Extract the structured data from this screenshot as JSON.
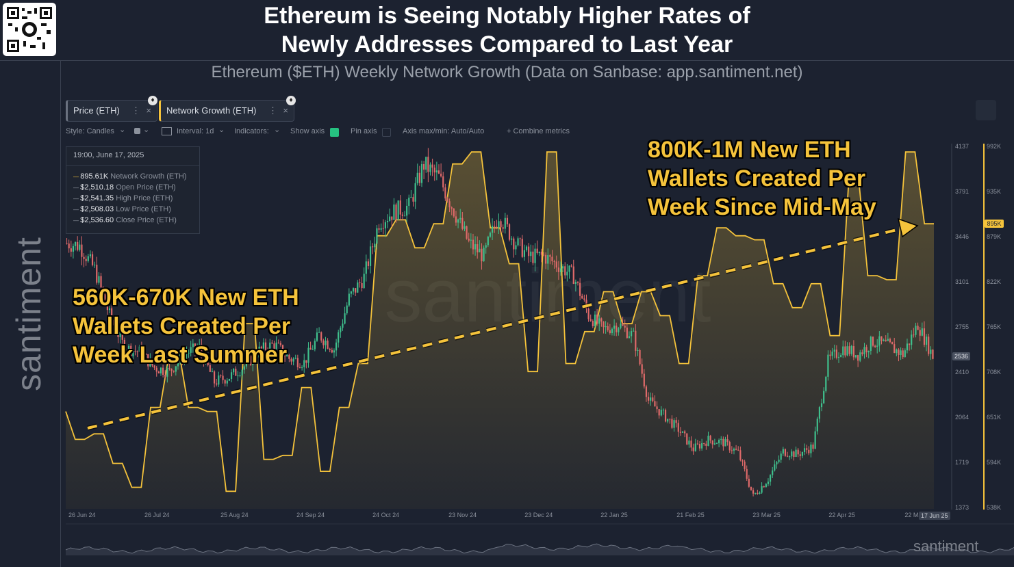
{
  "header": {
    "title_line1": "Ethereum is Seeing Notably Higher Rates of",
    "title_line2": "Newly Addresses Compared to Last Year",
    "subtitle": "Ethereum ($ETH) Weekly Network Growth (Data on Sanbase: app.santiment.net)"
  },
  "brand": {
    "name": "santiment",
    "watermark": "santiment"
  },
  "tabs": [
    {
      "label": "Price (ETH)",
      "close": "×",
      "menu": "⋮"
    },
    {
      "label": "Network Growth (ETH)",
      "close": "×",
      "menu": "⋮"
    }
  ],
  "toolbar": {
    "style": "Style: Candles",
    "interval": "Interval: 1d",
    "indicators": "Indicators:",
    "show_axis": "Show axis",
    "pin_axis": "Pin axis",
    "axis_minmax": "Axis max/min: Auto/Auto",
    "combine": "+  Combine metrics",
    "chevron": "⌄"
  },
  "tooltip": {
    "date": "19:00, June 17, 2025",
    "rows": [
      {
        "value": "895.61K",
        "label": "Network Growth (ETH)",
        "color": "#f5c33b"
      },
      {
        "value": "$2,510.18",
        "label": "Open Price (ETH)",
        "color": "#9aa0aa"
      },
      {
        "value": "$2,541.35",
        "label": "High Price (ETH)",
        "color": "#9aa0aa"
      },
      {
        "value": "$2,508.03",
        "label": "Low Price (ETH)",
        "color": "#9aa0aa"
      },
      {
        "value": "$2,536.60",
        "label": "Close Price (ETH)",
        "color": "#9aa0aa"
      }
    ]
  },
  "annotations": {
    "left": [
      "560K-670K New ETH",
      "Wallets Created Per",
      "Week Last Summer"
    ],
    "right": [
      "800K-1M New ETH",
      "Wallets Created Per",
      "Week Since Mid-May"
    ]
  },
  "colors": {
    "background": "#1c2230",
    "accent": "#f5c33b",
    "up": "#3fc08d",
    "down": "#e06a6a"
  },
  "chart_data": {
    "type": "line",
    "x_ticks": [
      "26 Jun 24",
      "26 Jul 24",
      "25 Aug 24",
      "24 Sep 24",
      "24 Oct 24",
      "23 Nov 24",
      "23 Dec 24",
      "22 Jan 25",
      "21 Feb 25",
      "23 Mar 25",
      "22 Apr 25",
      "22 May 25"
    ],
    "x_last_label": "17 Jun 25",
    "price_axis": {
      "ticks": [
        "4137",
        "3791",
        "3446",
        "3101",
        "2755",
        "2410",
        "2064",
        "1719",
        "1373"
      ],
      "ylim": [
        1373,
        4137
      ],
      "current": "2536"
    },
    "network_axis": {
      "ticks": [
        "992K",
        "935K",
        "879K",
        "822K",
        "765K",
        "708K",
        "651K",
        "594K",
        "538K"
      ],
      "ylim": [
        538,
        992
      ],
      "current": "895K"
    },
    "series": [
      {
        "name": "Network Growth (ETH)",
        "unit": "K",
        "style": "step-area",
        "values": [
          660,
          625,
          625,
          632,
          632,
          595,
          595,
          565,
          565,
          665,
          665,
          735,
          735,
          665,
          665,
          660,
          660,
          560,
          560,
          770,
          770,
          600,
          600,
          605,
          605,
          690,
          690,
          585,
          585,
          665,
          665,
          720,
          720,
          880,
          880,
          900,
          900,
          865,
          865,
          895,
          895,
          970,
          970,
          985,
          985,
          890,
          890,
          845,
          845,
          710,
          710,
          985,
          985,
          720,
          720,
          760,
          760,
          810,
          810,
          770,
          770,
          810,
          810,
          780,
          780,
          720,
          720,
          830,
          830,
          890,
          890,
          880,
          880,
          875,
          875,
          820,
          820,
          790,
          790,
          820,
          820,
          755,
          755,
          955,
          955,
          830,
          830,
          825,
          825,
          985,
          985,
          895,
          895
        ]
      },
      {
        "name": "Price (ETH)",
        "unit": "USD",
        "style": "daily-candles",
        "weekly_closes": [
          3400,
          3380,
          3200,
          2850,
          2600,
          2570,
          2450,
          2420,
          2560,
          2600,
          2340,
          2380,
          2460,
          2580,
          2630,
          2520,
          2490,
          2700,
          2590,
          2980,
          3140,
          3560,
          3640,
          3680,
          4000,
          3900,
          3650,
          3400,
          3300,
          3620,
          3420,
          3300,
          3300,
          3230,
          3150,
          2850,
          2740,
          2780,
          2690,
          2200,
          2090,
          1980,
          1830,
          1900,
          1880,
          1800,
          1470,
          1600,
          1810,
          1790,
          1850,
          2500,
          2600,
          2550,
          2650,
          2620,
          2550,
          2780,
          2536
        ]
      }
    ]
  }
}
